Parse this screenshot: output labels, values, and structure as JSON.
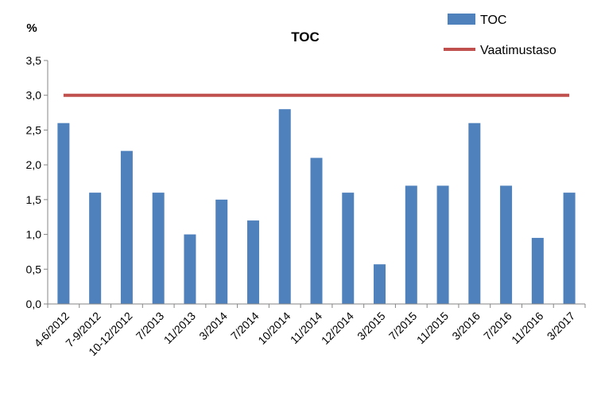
{
  "chart_data": {
    "type": "bar",
    "title": "TOC",
    "ylabel": "%",
    "xlabel": "",
    "ylim": [
      0,
      3.5
    ],
    "ytick_step": 0.5,
    "ytick_labels": [
      "0,0",
      "0,5",
      "1,0",
      "1,5",
      "2,0",
      "2,5",
      "3,0",
      "3,5"
    ],
    "categories": [
      "4-6/2012",
      "7-9/2012",
      "10-12/2012",
      "7/2013",
      "11/2013",
      "3/2014",
      "7/2014",
      "10/2014",
      "11/2014",
      "12/2014",
      "3/2015",
      "7/2015",
      "11/2015",
      "3/2016",
      "7/2016",
      "11/2016",
      "3/2017"
    ],
    "series": [
      {
        "name": "TOC",
        "type": "bar",
        "color": "#4f81bd",
        "values": [
          2.6,
          1.6,
          2.2,
          1.6,
          1.0,
          1.5,
          1.2,
          2.8,
          2.1,
          1.6,
          0.57,
          1.7,
          1.7,
          2.6,
          1.7,
          0.95,
          1.6
        ]
      },
      {
        "name": "Vaatimustaso",
        "type": "line",
        "color": "#c0504d",
        "value": 3.0
      }
    ],
    "grid": false,
    "legend_position": "top-right"
  }
}
